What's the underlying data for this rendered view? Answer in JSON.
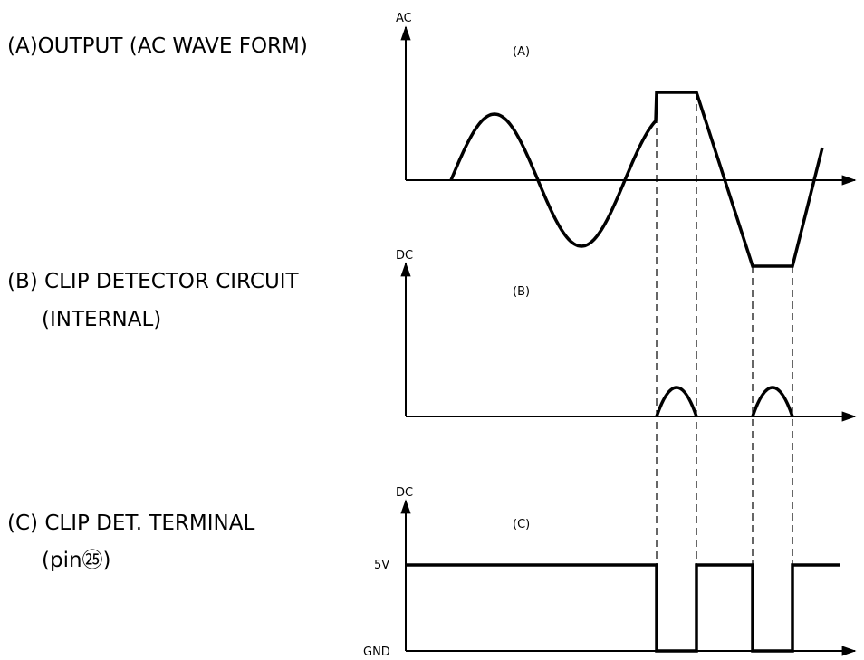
{
  "labels": {
    "a": "(A)OUTPUT (AC WAVE FORM)",
    "b_line1": "(B) CLIP DETECTOR CIRCUIT",
    "b_line2": "(INTERNAL)",
    "c_line1": "(C) CLIP DET. TERMINAL",
    "c_line2": "(pin㉕)"
  },
  "panels": {
    "a": {
      "axis_name": "AC",
      "tag": "(A)"
    },
    "b": {
      "axis_name": "DC",
      "tag": "(B)"
    },
    "c": {
      "axis_name": "DC",
      "tag": "(C)",
      "high_label": "5V",
      "low_label": "GND"
    }
  }
}
